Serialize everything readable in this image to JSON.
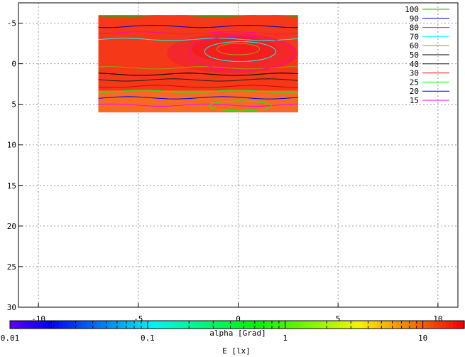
{
  "chart_data": {
    "type": "heatmap",
    "title": "",
    "xlabel": "alpha [Grad]",
    "ylabel": "",
    "xlim": [
      -11,
      11
    ],
    "ylim": [
      -7.5,
      30
    ],
    "y_inverted": true,
    "grid": true,
    "x_ticks": [
      -10,
      -5,
      0,
      5,
      10
    ],
    "x_tick_labels": [
      "-10",
      "-5",
      "0",
      "5",
      "10"
    ],
    "y_ticks": [
      -5,
      0,
      5,
      10,
      15,
      20,
      25,
      30
    ],
    "y_tick_labels": [
      "-5",
      "0",
      "5",
      "10",
      "15",
      "20",
      "25",
      "30"
    ],
    "heatmap_extent": {
      "x": [
        -7,
        3
      ],
      "y": [
        -6,
        6
      ]
    },
    "colorbar": {
      "label": "E [lx]",
      "scale": "log",
      "range": [
        0.01,
        20
      ],
      "ticks": [
        0.01,
        0.1,
        1,
        10
      ],
      "tick_labels": [
        "0.01",
        "0.1",
        "1",
        "10"
      ]
    },
    "legend_position": "top-right",
    "contour_levels": [
      {
        "level": "100",
        "color": "#00c000"
      },
      {
        "level": "90",
        "color": "#0000c0"
      },
      {
        "level": "80",
        "color": "#ff00c0"
      },
      {
        "level": "70",
        "color": "#00ffff"
      },
      {
        "level": "60",
        "color": "#a0a000"
      },
      {
        "level": "50",
        "color": "#000000"
      },
      {
        "level": "40",
        "color": "#202020"
      },
      {
        "level": "30",
        "color": "#e00000"
      },
      {
        "level": "25",
        "color": "#00ff00"
      },
      {
        "level": "20",
        "color": "#0000ff"
      },
      {
        "level": "15",
        "color": "#ff00ff"
      }
    ]
  }
}
